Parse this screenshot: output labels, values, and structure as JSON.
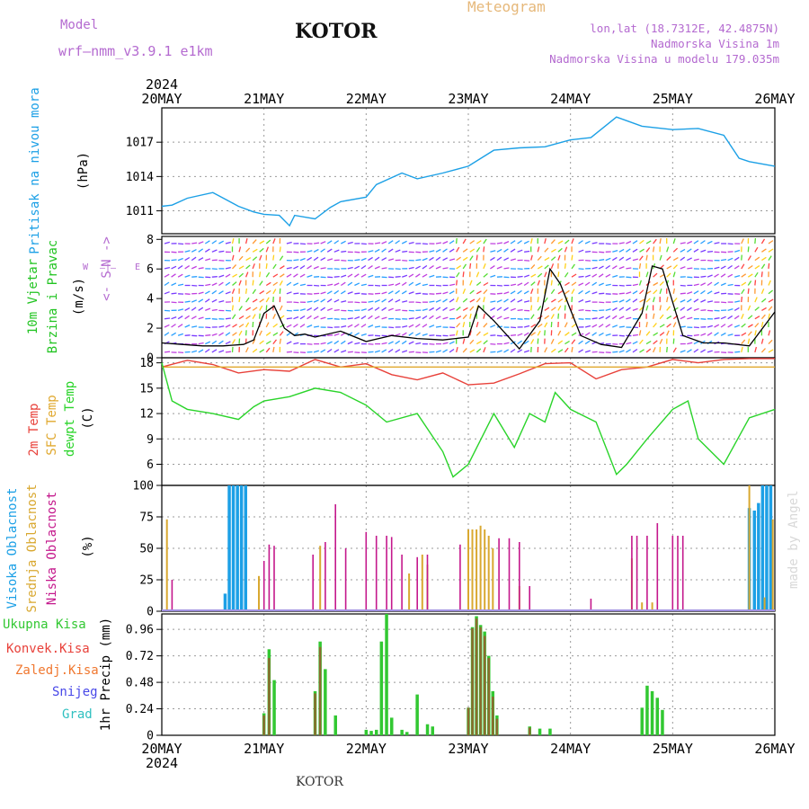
{
  "header": {
    "model_label": "Model",
    "model_name": "wrf—nmm_v3.9.1  e1km",
    "station": "KOTOR",
    "product": "Meteogram",
    "lonlat": "lon,lat (18.7312E, 42.4875N)",
    "altitude": "Nadmorska Visina 1m",
    "model_altitude": "Nadmorska Visina u modelu 179.035m",
    "watermark": "made by Angel",
    "footer_station": "KOTOR"
  },
  "colors": {
    "pressure": "#1ca0e6",
    "wind_label": "#22c422",
    "temp2m": "#e8413a",
    "sfc_temp": "#e0a82e",
    "dewpt": "#2ad42a",
    "high_cloud": "#1ca0e6",
    "mid_cloud": "#d9a830",
    "low_cloud": "#c4188c",
    "total_precip": "#32c832",
    "convective": "#e8413a",
    "freezing": "#f07830",
    "snow": "#4848e8",
    "hail": "#30c0c0",
    "header_purple": "#b46ad0",
    "header_orange": "#e6b87a"
  },
  "chart_data": [
    {
      "type": "line",
      "name": "pressure",
      "ylabel": [
        "Pritisak na nivou mora",
        "(hPa)"
      ],
      "y_ticks": [
        1011,
        1014,
        1017
      ],
      "ylim": [
        1009,
        1020
      ],
      "grid": true,
      "x_days": [
        "20MAY",
        "21MAY",
        "22MAY",
        "23MAY",
        "24MAY",
        "25MAY",
        "26MAY"
      ],
      "x_year": "2024",
      "x": [
        0,
        0.1,
        0.25,
        0.5,
        0.75,
        0.9,
        1.0,
        1.15,
        1.25,
        1.3,
        1.5,
        1.65,
        1.75,
        2.0,
        2.1,
        2.35,
        2.5,
        2.75,
        3.0,
        3.25,
        3.5,
        3.75,
        4.0,
        4.2,
        4.45,
        4.7,
        5.0,
        5.25,
        5.5,
        5.65,
        5.75,
        6.0
      ],
      "values": [
        1011.4,
        1011.5,
        1012.1,
        1012.6,
        1011.4,
        1010.9,
        1010.7,
        1010.6,
        1009.7,
        1010.6,
        1010.3,
        1011.3,
        1011.8,
        1012.2,
        1013.3,
        1014.3,
        1013.8,
        1014.3,
        1014.9,
        1016.3,
        1016.5,
        1016.6,
        1017.2,
        1017.4,
        1019.2,
        1018.4,
        1018.1,
        1018.2,
        1017.6,
        1015.6,
        1015.3,
        1014.9
      ]
    },
    {
      "type": "line",
      "name": "wind",
      "ylabel": [
        "10m Vjetar",
        "Brzina i Pravac",
        "(m/s)"
      ],
      "compass": [
        "N",
        "W",
        "E",
        "S"
      ],
      "y_ticks": [
        0,
        2,
        4,
        6,
        8
      ],
      "ylim": [
        0,
        8.2
      ],
      "x": [
        0,
        0.2,
        0.4,
        0.6,
        0.8,
        0.9,
        1.0,
        1.1,
        1.2,
        1.3,
        1.4,
        1.5,
        1.75,
        2.0,
        2.25,
        2.5,
        2.75,
        3.0,
        3.1,
        3.25,
        3.5,
        3.7,
        3.8,
        3.9,
        4.1,
        4.3,
        4.5,
        4.7,
        4.8,
        4.9,
        5.1,
        5.3,
        5.5,
        5.75,
        6.0
      ],
      "values": [
        1.0,
        0.9,
        0.8,
        0.8,
        0.9,
        1.2,
        3.0,
        3.5,
        2.0,
        1.5,
        1.6,
        1.4,
        1.8,
        1.1,
        1.5,
        1.3,
        1.2,
        1.4,
        3.5,
        2.5,
        0.6,
        2.5,
        6.0,
        5.0,
        1.5,
        0.9,
        0.7,
        3.0,
        6.2,
        6.0,
        1.5,
        1.0,
        1.0,
        0.8,
        3.1
      ]
    },
    {
      "type": "line",
      "name": "temperature",
      "ylabel": [
        "2m Temp",
        "SFC Temp",
        "dewpt Temp",
        "(C)"
      ],
      "y_ticks": [
        6,
        9,
        12,
        15,
        18
      ],
      "ylim": [
        3.5,
        18.6
      ],
      "series": [
        {
          "name": "2m Temp",
          "x": [
            0,
            0.25,
            0.5,
            0.75,
            1.0,
            1.25,
            1.5,
            1.75,
            2.0,
            2.25,
            2.5,
            2.75,
            3.0,
            3.25,
            3.5,
            3.75,
            4.0,
            4.25,
            4.5,
            4.75,
            5.0,
            5.25,
            5.5,
            5.75,
            6.0
          ],
          "values": [
            17.5,
            18.3,
            17.8,
            16.8,
            17.2,
            17.0,
            18.4,
            17.5,
            17.9,
            16.6,
            16.0,
            16.8,
            15.4,
            15.6,
            16.7,
            17.9,
            18.0,
            16.1,
            17.2,
            17.5,
            18.4,
            18.0,
            18.4,
            18.5,
            18.5
          ]
        },
        {
          "name": "SFC Temp",
          "x": [
            0,
            6
          ],
          "values": [
            17.5,
            17.5
          ]
        },
        {
          "name": "dewpt Temp",
          "x": [
            0,
            0.1,
            0.25,
            0.5,
            0.75,
            0.9,
            1.0,
            1.25,
            1.5,
            1.75,
            2.0,
            2.2,
            2.5,
            2.75,
            2.85,
            3.0,
            3.25,
            3.45,
            3.6,
            3.75,
            3.85,
            4.0,
            4.25,
            4.45,
            4.55,
            4.75,
            5.0,
            5.15,
            5.25,
            5.5,
            5.75,
            6.0
          ],
          "values": [
            18.0,
            13.5,
            12.5,
            12.0,
            11.3,
            12.8,
            13.5,
            14.0,
            15.0,
            14.5,
            13.0,
            11.0,
            12.0,
            7.5,
            4.5,
            6.0,
            12.0,
            8.0,
            12.0,
            11.0,
            14.5,
            12.5,
            11.0,
            4.8,
            6.0,
            9.0,
            12.5,
            13.5,
            9.0,
            6.0,
            11.5,
            12.5
          ]
        }
      ]
    },
    {
      "type": "bar",
      "name": "cloud cover",
      "ylabel": [
        "Visoka Oblacnost",
        "Srednja Oblacnost",
        "Niska Oblacnost",
        "(%)"
      ],
      "y_ticks": [
        0,
        25,
        50,
        75,
        100
      ],
      "ylim": [
        0,
        100
      ],
      "series": [
        {
          "name": "Visoka Oblacnost",
          "x": [
            0.62,
            0.66,
            0.7,
            0.74,
            0.78,
            0.82,
            5.75,
            5.8,
            5.84,
            5.88,
            5.92,
            5.96
          ],
          "values": [
            14,
            100,
            100,
            100,
            100,
            100,
            82,
            80,
            86,
            100,
            100,
            100
          ]
        },
        {
          "name": "Srednja Oblacnost",
          "x": [
            0.05,
            0.95,
            1.55,
            2.42,
            2.55,
            2.6,
            3.0,
            3.04,
            3.08,
            3.12,
            3.16,
            3.2,
            3.24,
            3.5,
            4.6,
            4.7,
            4.8,
            5.75,
            5.9,
            5.98
          ],
          "values": [
            73,
            28,
            52,
            30,
            45,
            37,
            65,
            65,
            65,
            68,
            65,
            60,
            50,
            20,
            42,
            7,
            7,
            100,
            11,
            73
          ]
        },
        {
          "name": "Niska Oblacnost",
          "x": [
            0.1,
            1.0,
            1.05,
            1.1,
            1.48,
            1.6,
            1.7,
            1.8,
            2.0,
            2.1,
            2.2,
            2.25,
            2.35,
            2.5,
            2.6,
            2.92,
            3.3,
            3.4,
            3.5,
            3.6,
            4.2,
            4.6,
            4.65,
            4.75,
            4.85,
            5.0,
            5.05,
            5.1
          ],
          "values": [
            25,
            40,
            53,
            52,
            45,
            55,
            85,
            50,
            63,
            60,
            60,
            59,
            45,
            43,
            45,
            53,
            58,
            58,
            55,
            20,
            10,
            60,
            60,
            60,
            70,
            60,
            60,
            60
          ]
        }
      ]
    },
    {
      "type": "bar",
      "name": "precipitation",
      "ylabel": [
        "1hr Precip (mm)"
      ],
      "legend": [
        "Ukupna Kisa",
        "Konvek.Kisa",
        "Zaledj.Kisa",
        "Snijeg",
        "Grad"
      ],
      "y_ticks": [
        0,
        0.24,
        0.48,
        0.72,
        0.96
      ],
      "y_tick_labels": [
        "0",
        "0.24",
        "0.48",
        "0.72",
        "0.96"
      ],
      "ylim": [
        0,
        1.1
      ],
      "series": [
        {
          "name": "Ukupna Kisa",
          "x": [
            1.0,
            1.05,
            1.1,
            1.5,
            1.55,
            1.6,
            1.7,
            2.0,
            2.05,
            2.1,
            2.15,
            2.2,
            2.25,
            2.35,
            2.4,
            2.5,
            2.6,
            2.65,
            3.0,
            3.04,
            3.08,
            3.12,
            3.16,
            3.2,
            3.24,
            3.28,
            3.6,
            3.7,
            3.8,
            4.7,
            4.75,
            4.8,
            4.85,
            4.9
          ],
          "values": [
            0.2,
            0.78,
            0.5,
            0.4,
            0.85,
            0.6,
            0.18,
            0.05,
            0.04,
            0.05,
            0.85,
            1.1,
            0.16,
            0.05,
            0.03,
            0.37,
            0.1,
            0.08,
            0.25,
            0.98,
            1.08,
            1.0,
            0.94,
            0.72,
            0.4,
            0.18,
            0.08,
            0.06,
            0.06,
            0.25,
            0.45,
            0.4,
            0.34,
            0.23
          ]
        },
        {
          "name": "Konvek.Kisa",
          "x": [
            1.0,
            1.05,
            1.5,
            1.55,
            3.0,
            3.04,
            3.08,
            3.12,
            3.16,
            3.2,
            3.24,
            3.28,
            3.6
          ],
          "values": [
            0.18,
            0.7,
            0.38,
            0.8,
            0.25,
            0.97,
            1.06,
            0.98,
            0.9,
            0.7,
            0.35,
            0.15,
            0.07
          ]
        }
      ]
    }
  ]
}
